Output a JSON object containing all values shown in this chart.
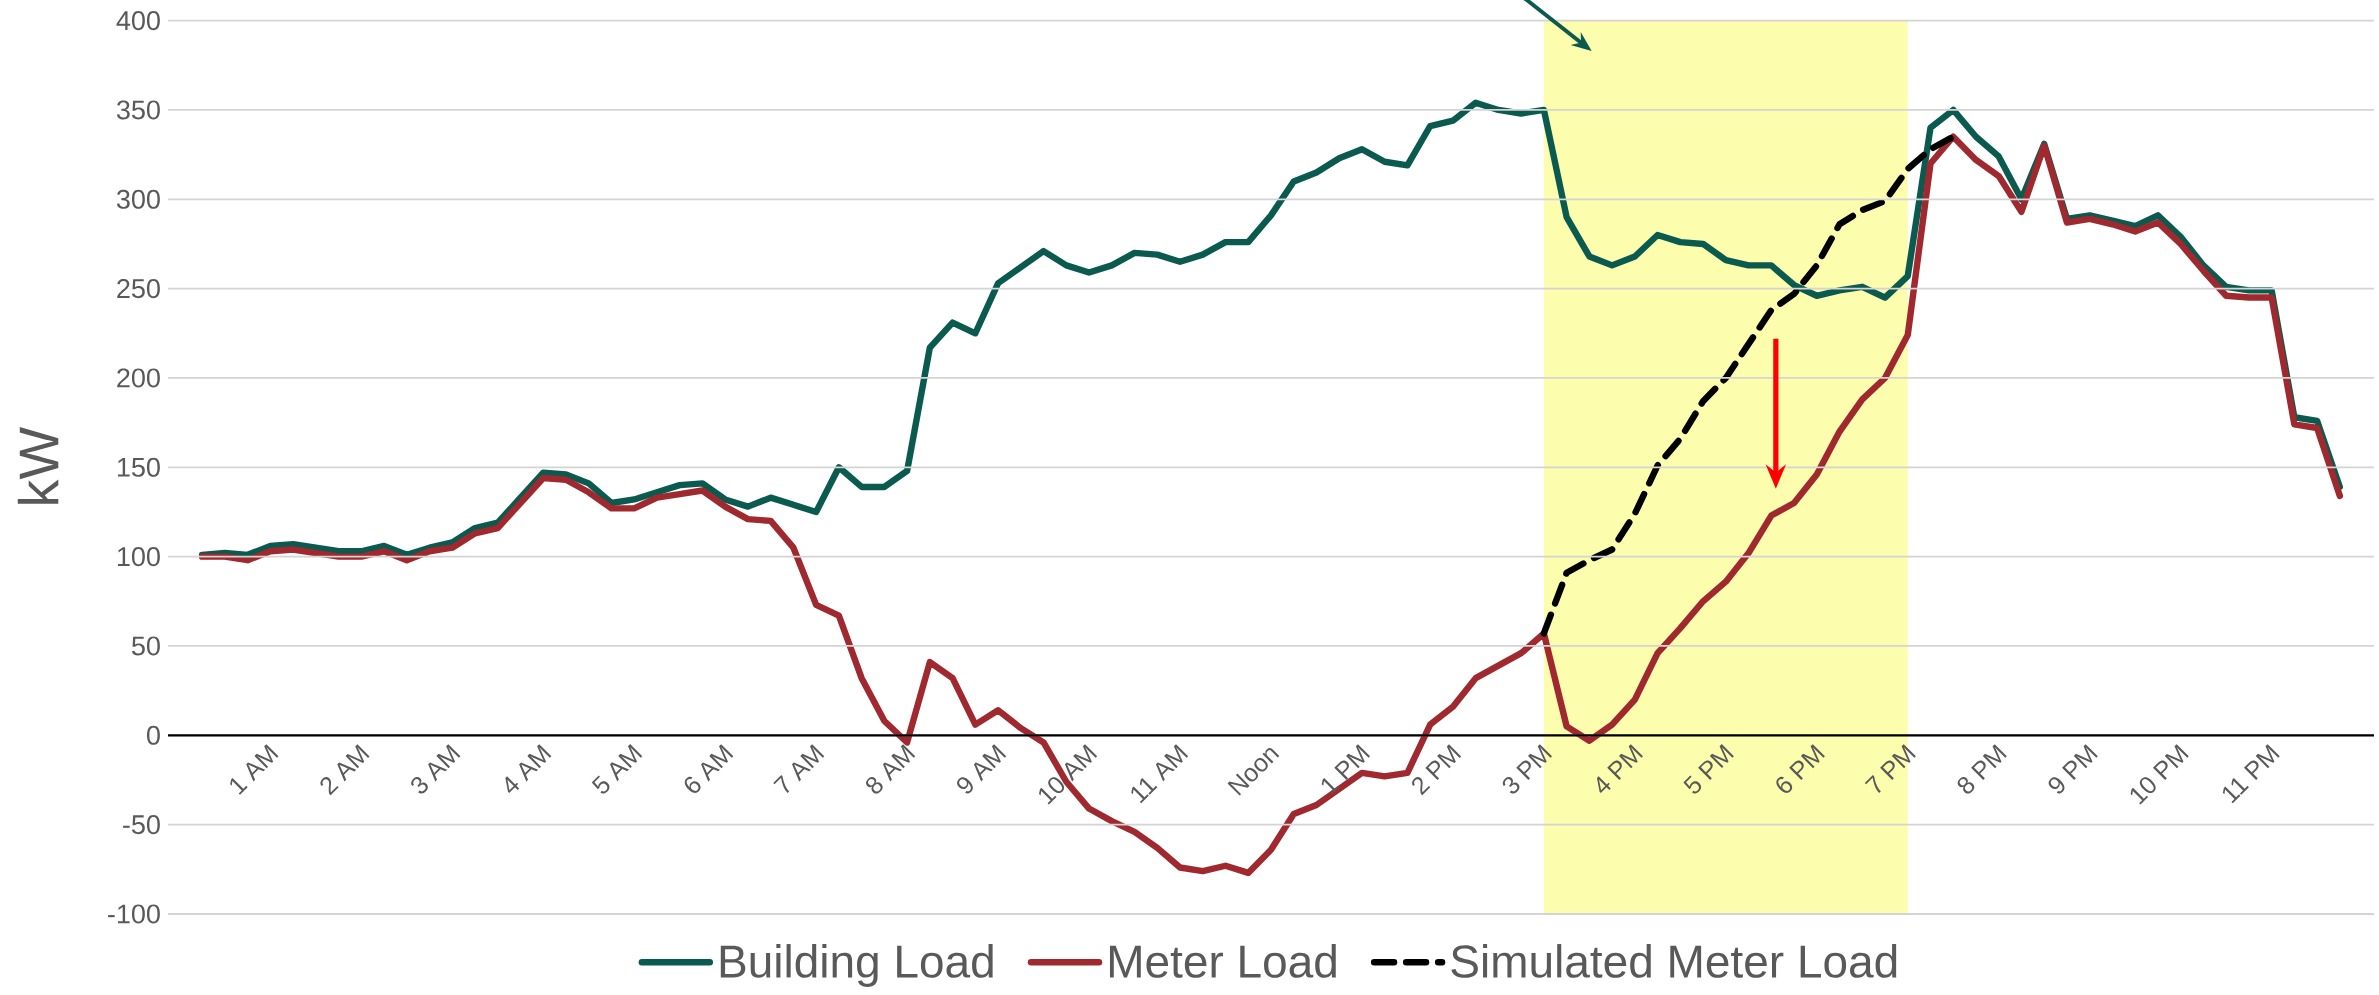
{
  "chart_data": {
    "type": "line",
    "ylabel": "kW",
    "categories": [
      null,
      null,
      null,
      "1 AM",
      null,
      null,
      null,
      "2 AM",
      null,
      null,
      null,
      "3 AM",
      null,
      null,
      null,
      "4 AM",
      null,
      null,
      null,
      "5 AM",
      null,
      null,
      null,
      "6 AM",
      null,
      null,
      null,
      "7 AM",
      null,
      null,
      null,
      "8 AM",
      null,
      null,
      null,
      "9 AM",
      null,
      null,
      null,
      "10 AM",
      null,
      null,
      null,
      "11 AM",
      null,
      null,
      null,
      "Noon",
      null,
      null,
      null,
      "1 PM",
      null,
      null,
      null,
      "2 PM",
      null,
      null,
      null,
      "3 PM",
      null,
      null,
      null,
      "4 PM",
      null,
      null,
      null,
      "5 PM",
      null,
      null,
      null,
      "6 PM",
      null,
      null,
      null,
      "7 PM",
      null,
      null,
      null,
      "8 PM",
      null,
      null,
      null,
      "9 PM",
      null,
      null,
      null,
      "10 PM",
      null,
      null,
      null,
      "11 PM",
      null,
      null,
      null
    ],
    "series": [
      {
        "name": "Building Load",
        "color": "#0b5a4f",
        "values": [
          101,
          102,
          101,
          106,
          107,
          105,
          103,
          103,
          106,
          101,
          105,
          108,
          116,
          119,
          133,
          147,
          146,
          141,
          130,
          132,
          136,
          140,
          141,
          132,
          128,
          133,
          129,
          125,
          150,
          139,
          139,
          148,
          217,
          231,
          225,
          253,
          262,
          271,
          263,
          259,
          263,
          270,
          269,
          265,
          269,
          276,
          276,
          291,
          310,
          315,
          323,
          328,
          321,
          319,
          341,
          344,
          354,
          350,
          348,
          350,
          290,
          268,
          263,
          268,
          280,
          276,
          275,
          266,
          263,
          263,
          252,
          246,
          249,
          251,
          245,
          257,
          340,
          350,
          335,
          324,
          300,
          331,
          289,
          291,
          288,
          285,
          291,
          279,
          263,
          251,
          249,
          249,
          178,
          176,
          139
        ]
      },
      {
        "name": "Meter Load",
        "color": "#a0282f",
        "values": [
          100,
          100,
          98,
          103,
          104,
          102,
          100,
          100,
          103,
          98,
          103,
          105,
          113,
          116,
          130,
          144,
          143,
          136,
          127,
          127,
          133,
          135,
          137,
          128,
          121,
          120,
          105,
          73,
          67,
          32,
          8,
          -4,
          41,
          32,
          6,
          14,
          4,
          -4,
          -26,
          -41,
          -48,
          -54,
          -63,
          -74,
          -76,
          -73,
          -77,
          -64,
          -44,
          -39,
          -30,
          -21,
          -23,
          -21,
          6,
          16,
          32,
          39,
          46,
          57,
          5,
          -3,
          6,
          20,
          46,
          60,
          75,
          86,
          102,
          123,
          130,
          146,
          170,
          188,
          200,
          224,
          320,
          335,
          322,
          313,
          293,
          330,
          287,
          289,
          286,
          282,
          287,
          275,
          260,
          246,
          245,
          245,
          174,
          172,
          134
        ]
      },
      {
        "name": "Simulated Meter Load",
        "color": "#000000",
        "line_style": "dashed",
        "values": [
          null,
          null,
          null,
          null,
          null,
          null,
          null,
          null,
          null,
          null,
          null,
          null,
          null,
          null,
          null,
          null,
          null,
          null,
          null,
          null,
          null,
          null,
          null,
          null,
          null,
          null,
          null,
          null,
          null,
          null,
          null,
          null,
          null,
          null,
          null,
          null,
          null,
          null,
          null,
          null,
          null,
          null,
          null,
          null,
          null,
          null,
          null,
          null,
          null,
          null,
          null,
          null,
          null,
          null,
          null,
          null,
          null,
          null,
          null,
          57,
          91,
          98,
          104,
          124,
          151,
          166,
          187,
          200,
          219,
          238,
          247,
          263,
          286,
          294,
          299,
          317,
          328,
          335,
          null,
          null,
          null,
          null,
          null,
          null,
          null,
          null,
          null,
          null,
          null,
          null,
          null,
          null,
          null,
          null,
          null
        ]
      }
    ],
    "ylim": [
      -100,
      400
    ],
    "yticks": [
      -100,
      -50,
      0,
      50,
      100,
      150,
      200,
      250,
      300,
      350,
      400
    ],
    "bands": [
      {
        "axis": "x",
        "from": "3 PM",
        "to": "7 PM",
        "color": "#fdfdae"
      }
    ],
    "grid": "y",
    "legend": "bottom"
  }
}
